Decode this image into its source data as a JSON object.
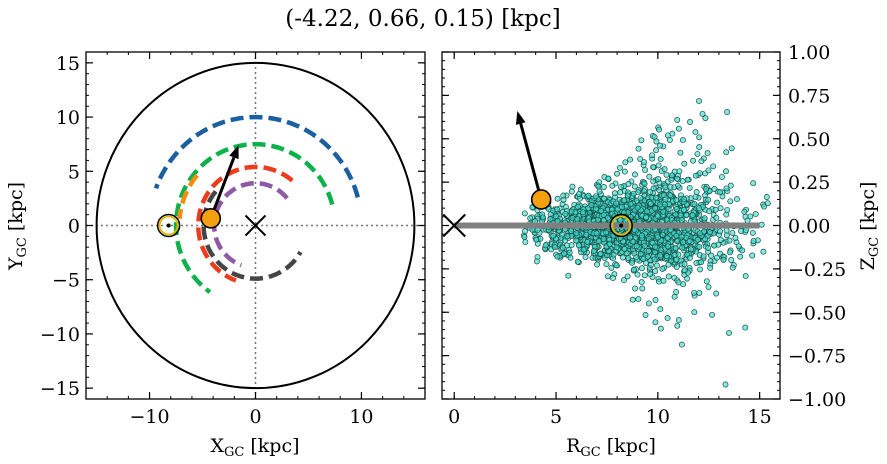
{
  "title": "(-4.22, 0.66, 0.15) [kpc]",
  "chart_data": [
    {
      "type": "line",
      "panel": "left",
      "xlabel": "X_GC [kpc]",
      "ylabel": "Y_GC [kpc]",
      "xlim": [
        -16,
        16
      ],
      "ylim": [
        -16,
        16
      ],
      "xticks": [
        "−10",
        "0",
        "10"
      ],
      "xtick_values": [
        -10,
        0,
        10
      ],
      "yticks": [
        "15",
        "10",
        "5",
        "0",
        "−5",
        "−10",
        "−15"
      ],
      "ytick_values": [
        15,
        10,
        5,
        0,
        -5,
        -10,
        -15
      ],
      "boundary_circle_radius": 15,
      "galactic_center": [
        0,
        0
      ],
      "sun": [
        -8.2,
        0
      ],
      "object": [
        -4.22,
        0.66
      ],
      "velocity_arrow_tip": [
        -1.6,
        7.4
      ],
      "arms": [
        {
          "color": "#1a60a0",
          "radius": 10.0,
          "theta_start": 15,
          "theta_end": 160
        },
        {
          "color": "#0db14b",
          "radius": 7.5,
          "theta_start": 15,
          "theta_end": 235
        },
        {
          "color": "#f28c0d",
          "radius": 7.2,
          "theta_start": 140,
          "theta_end": 175
        },
        {
          "color": "#ee3b1b",
          "radius": 5.4,
          "theta_start": 50,
          "theta_end": 250
        },
        {
          "color": "#8c5aa6",
          "radius": 3.9,
          "theta_start": 40,
          "theta_end": 250
        },
        {
          "color": "#454545",
          "radius": 4.9,
          "theta_start": -220,
          "theta_end": -30
        }
      ]
    },
    {
      "type": "scatter",
      "panel": "right",
      "xlabel": "R_GC [kpc]",
      "ylabel": "Z_GC [kpc]",
      "xlim": [
        -0.6,
        16
      ],
      "ylim": [
        -1.0,
        1.0
      ],
      "xticks": [
        "0",
        "5",
        "10",
        "15"
      ],
      "xtick_values": [
        0,
        5,
        10,
        15
      ],
      "yticks": [
        "1.00",
        "0.75",
        "0.50",
        "0.25",
        "0.00",
        "−0.25",
        "−0.50",
        "−0.75",
        "−1.00"
      ],
      "ytick_values": [
        1.0,
        0.75,
        0.5,
        0.25,
        0.0,
        -0.25,
        -0.5,
        -0.75,
        -1.0
      ],
      "point_color": "#40e0d0",
      "disk_line": {
        "x": [
          0,
          15
        ],
        "y": 0
      },
      "galactic_center": [
        0,
        0
      ],
      "sun": [
        8.2,
        0
      ],
      "object": [
        4.27,
        0.15
      ],
      "velocity_arrow_tip": [
        3.1,
        0.66
      ],
      "cluster": {
        "center_r": 8.8,
        "spread_r": 2.3,
        "spread_z": 0.08,
        "count": 2200
      }
    }
  ]
}
